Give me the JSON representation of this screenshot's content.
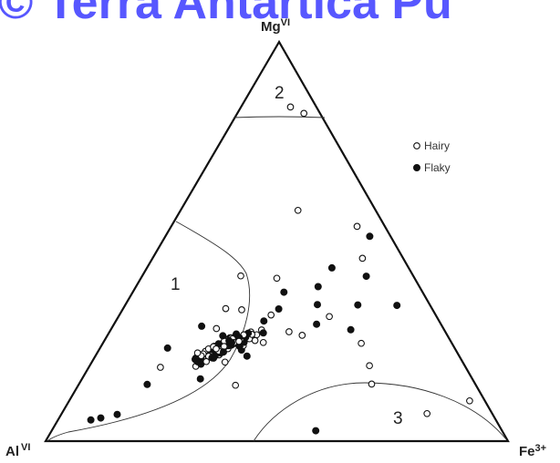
{
  "watermark": "© Terra Antartica Pu",
  "chart_data": {
    "type": "scatter",
    "subtype": "ternary",
    "title": "",
    "vertices": {
      "top": {
        "base": "Mg",
        "sup": "VI"
      },
      "left": {
        "base": "Al",
        "sup": "VI"
      },
      "right": {
        "base": "Fe",
        "sup": "3+"
      }
    },
    "regions": [
      {
        "label": "1"
      },
      {
        "label": "2"
      },
      {
        "label": "3"
      }
    ],
    "legend": {
      "placement": "top-right",
      "entries": [
        {
          "name": "Hairy",
          "marker": "open-circle"
        },
        {
          "name": "Flaky",
          "marker": "filled-circle"
        }
      ]
    },
    "colors": {
      "marker": "#111111",
      "line": "#000000",
      "watermark": "#3a3aff"
    },
    "series": [
      {
        "name": "Hairy",
        "points": [
          {
            "mg": 0.837,
            "al": 0.056,
            "fe": 0.107
          },
          {
            "mg": 0.821,
            "al": 0.035,
            "fe": 0.144
          },
          {
            "mg": 0.578,
            "al": 0.168,
            "fe": 0.254
          },
          {
            "mg": 0.538,
            "al": 0.06,
            "fe": 0.402
          },
          {
            "mg": 0.458,
            "al": 0.088,
            "fe": 0.454
          },
          {
            "mg": 0.414,
            "al": 0.373,
            "fe": 0.213
          },
          {
            "mg": 0.332,
            "al": 0.446,
            "fe": 0.222
          },
          {
            "mg": 0.185,
            "al": 0.66,
            "fe": 0.155
          },
          {
            "mg": 0.221,
            "al": 0.562,
            "fe": 0.217
          },
          {
            "mg": 0.198,
            "al": 0.514,
            "fe": 0.288
          },
          {
            "mg": 0.14,
            "al": 0.52,
            "fe": 0.34
          },
          {
            "mg": 0.265,
            "al": 0.314,
            "fe": 0.421
          },
          {
            "mg": 0.312,
            "al": 0.232,
            "fe": 0.456
          },
          {
            "mg": 0.245,
            "al": 0.196,
            "fe": 0.559
          },
          {
            "mg": 0.189,
            "al": 0.206,
            "fe": 0.605
          },
          {
            "mg": 0.143,
            "al": 0.224,
            "fe": 0.633
          },
          {
            "mg": 0.069,
            "al": 0.141,
            "fe": 0.79
          },
          {
            "mg": 0.101,
            "al": 0.033,
            "fe": 0.866
          },
          {
            "mg": 0.329,
            "al": 0.413,
            "fe": 0.258
          },
          {
            "mg": 0.316,
            "al": 0.356,
            "fe": 0.328
          },
          {
            "mg": 0.274,
            "al": 0.338,
            "fe": 0.388
          },
          {
            "mg": 0.247,
            "al": 0.407,
            "fe": 0.346
          },
          {
            "mg": 0.282,
            "al": 0.491,
            "fe": 0.227
          },
          {
            "mg": 0.408,
            "al": 0.298,
            "fe": 0.294
          }
        ]
      },
      {
        "name": "Flaky",
        "points": [
          {
            "mg": 0.053,
            "al": 0.876,
            "fe": 0.071
          },
          {
            "mg": 0.058,
            "al": 0.852,
            "fe": 0.09
          },
          {
            "mg": 0.067,
            "al": 0.812,
            "fe": 0.121
          },
          {
            "mg": 0.142,
            "al": 0.71,
            "fe": 0.148
          },
          {
            "mg": 0.233,
            "al": 0.621,
            "fe": 0.146
          },
          {
            "mg": 0.288,
            "al": 0.52,
            "fe": 0.192
          },
          {
            "mg": 0.208,
            "al": 0.534,
            "fe": 0.258
          },
          {
            "mg": 0.156,
            "al": 0.588,
            "fe": 0.256
          },
          {
            "mg": 0.271,
            "al": 0.395,
            "fe": 0.334
          },
          {
            "mg": 0.331,
            "al": 0.332,
            "fe": 0.337
          },
          {
            "mg": 0.373,
            "al": 0.3,
            "fe": 0.327
          },
          {
            "mg": 0.342,
            "al": 0.243,
            "fe": 0.415
          },
          {
            "mg": 0.341,
            "al": 0.156,
            "fe": 0.503
          },
          {
            "mg": 0.387,
            "al": 0.219,
            "fe": 0.394
          },
          {
            "mg": 0.513,
            "al": 0.045,
            "fe": 0.442
          },
          {
            "mg": 0.434,
            "al": 0.166,
            "fe": 0.4
          },
          {
            "mg": 0.279,
            "al": 0.202,
            "fe": 0.519
          },
          {
            "mg": 0.34,
            "al": 0.072,
            "fe": 0.588
          },
          {
            "mg": 0.026,
            "al": 0.403,
            "fe": 0.571
          },
          {
            "mg": 0.264,
            "al": 0.486,
            "fe": 0.25
          },
          {
            "mg": 0.213,
            "al": 0.459,
            "fe": 0.328
          },
          {
            "mg": 0.301,
            "al": 0.379,
            "fe": 0.32
          },
          {
            "mg": 0.293,
            "al": 0.269,
            "fe": 0.438
          },
          {
            "mg": 0.413,
            "al": 0.102,
            "fe": 0.485
          }
        ]
      }
    ],
    "cluster": {
      "center": {
        "mg": 0.235,
        "al": 0.5,
        "fe": 0.265
      },
      "count_hairy": 55,
      "count_flaky": 55
    }
  }
}
